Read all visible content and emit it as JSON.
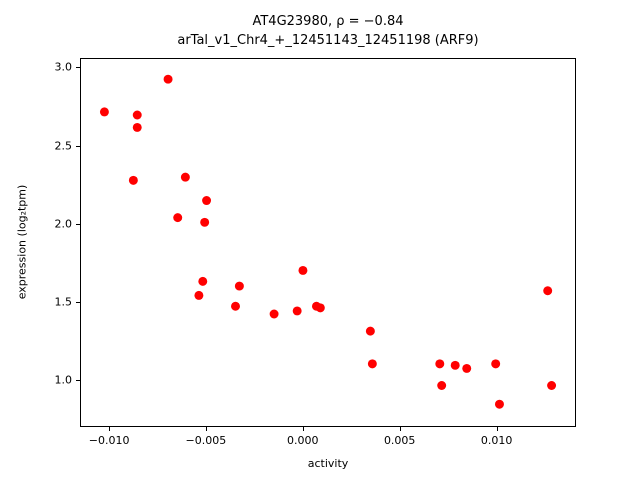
{
  "chart": {
    "title_line1": "AT4G23980, ρ = −0.84",
    "title_line2": "arTal_v1_Chr4_+_12451143_12451198 (ARF9)",
    "xlabel": "activity",
    "ylabel": "expression (log₂tpm)"
  },
  "chart_data": {
    "type": "scatter",
    "title": "AT4G23980, ρ = −0.84 / arTal_v1_Chr4_+_12451143_12451198 (ARF9)",
    "xlabel": "activity",
    "ylabel": "expression (log2 tpm)",
    "marker_color": "#ff0000",
    "marker_radius": 4.5,
    "xlim": [
      -0.0115,
      0.0141
    ],
    "ylim": [
      0.7,
      3.06
    ],
    "x": [
      -0.0103,
      -0.0088,
      -0.0086,
      -0.0086,
      -0.007,
      -0.0061,
      -0.0065,
      -0.005,
      -0.0051,
      -0.0052,
      -0.0054,
      -0.0035,
      -0.0033,
      -0.0015,
      -0.0003,
      0.0,
      0.0007,
      0.0009,
      0.0035,
      0.0036,
      0.0071,
      0.0072,
      0.0079,
      0.0085,
      0.01,
      0.0102,
      0.0127,
      0.0129
    ],
    "y": [
      2.72,
      2.28,
      2.7,
      2.62,
      2.93,
      2.3,
      2.04,
      2.15,
      2.01,
      1.63,
      1.54,
      1.47,
      1.6,
      1.42,
      1.44,
      1.7,
      1.47,
      1.46,
      1.31,
      1.1,
      1.1,
      0.96,
      1.09,
      1.07,
      1.1,
      0.84,
      1.57,
      0.96
    ],
    "x_ticks": {
      "values": [
        -0.01,
        -0.005,
        0.0,
        0.005,
        0.01
      ],
      "labels": [
        "−0.010",
        "−0.005",
        "0.000",
        "0.005",
        "0.010"
      ]
    },
    "y_ticks": {
      "values": [
        1.0,
        1.5,
        2.0,
        2.5,
        3.0
      ],
      "labels": [
        "1.0",
        "1.5",
        "2.0",
        "2.5",
        "3.0"
      ]
    },
    "grid": false,
    "legend": null
  }
}
